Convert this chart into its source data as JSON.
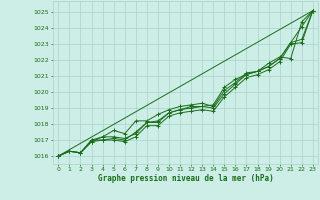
{
  "title": "Graphe pression niveau de la mer (hPa)",
  "bg_color": "#cceee6",
  "grid_color": "#aad4cc",
  "line_color": "#1a6e1a",
  "xlim": [
    -0.5,
    23.5
  ],
  "ylim": [
    1015.5,
    1025.7
  ],
  "xticks": [
    0,
    1,
    2,
    3,
    4,
    5,
    6,
    7,
    8,
    9,
    10,
    11,
    12,
    13,
    14,
    15,
    16,
    17,
    18,
    19,
    20,
    21,
    22,
    23
  ],
  "yticks": [
    1016,
    1017,
    1018,
    1019,
    1020,
    1021,
    1022,
    1023,
    1024,
    1025
  ],
  "series": [
    [
      1016.0,
      1016.3,
      1016.2,
      1017.0,
      1017.2,
      1017.2,
      1017.1,
      1017.4,
      1018.1,
      1018.2,
      1018.7,
      1018.9,
      1019.0,
      1019.1,
      1019.2,
      1020.3,
      1020.8,
      1021.1,
      1021.3,
      1021.8,
      1022.2,
      1022.1,
      1024.4,
      1025.1
    ],
    [
      1016.0,
      1016.3,
      1016.2,
      1016.9,
      1017.2,
      1017.6,
      1017.4,
      1018.2,
      1018.2,
      1018.6,
      1018.9,
      1019.1,
      1019.2,
      1019.3,
      1019.1,
      1020.1,
      1020.6,
      1021.2,
      1021.3,
      1021.6,
      1022.1,
      1023.1,
      1024.1,
      1025.1
    ],
    [
      1016.0,
      1016.3,
      1016.2,
      1017.0,
      1017.0,
      1017.1,
      1017.0,
      1017.5,
      1018.1,
      1018.1,
      1018.7,
      1018.9,
      1019.1,
      1019.1,
      1019.0,
      1019.9,
      1020.5,
      1021.1,
      1021.3,
      1021.6,
      1022.1,
      1023.1,
      1023.3,
      1025.1
    ],
    [
      1016.0,
      1016.3,
      1016.2,
      1016.9,
      1017.0,
      1017.0,
      1016.9,
      1017.2,
      1017.9,
      1017.9,
      1018.5,
      1018.7,
      1018.8,
      1018.9,
      1018.8,
      1019.7,
      1020.3,
      1020.9,
      1021.1,
      1021.4,
      1021.9,
      1023.0,
      1023.1,
      1025.1
    ]
  ],
  "ref_line": [
    1016.0,
    1025.1
  ]
}
